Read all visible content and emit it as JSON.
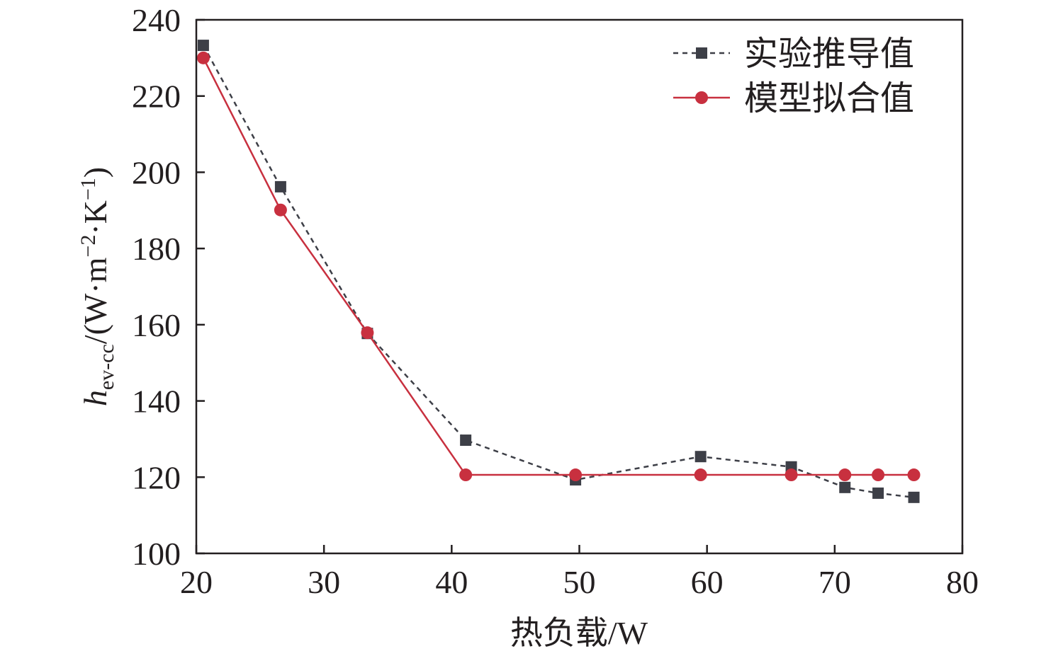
{
  "chart_data": {
    "type": "line",
    "title": "",
    "xlabel": "热负载/W",
    "ylabel": {
      "main": "h",
      "sub": "ev-cc",
      "unit_prefix": "/(W·m",
      "exp1": "−2",
      "mid": "·K",
      "exp2": "−1",
      "unit_suffix": ")"
    },
    "xlim": [
      20,
      80
    ],
    "ylim": [
      100,
      240
    ],
    "xticks": [
      20,
      30,
      40,
      50,
      60,
      70,
      80
    ],
    "yticks": [
      100,
      120,
      140,
      160,
      180,
      200,
      220,
      240
    ],
    "grid": false,
    "legend_position": "top-right",
    "series": [
      {
        "name": "实验推导值",
        "color": "#3d3f47",
        "line": "dashed",
        "marker": "square",
        "x": [
          20.55,
          26.6,
          33.4,
          41.1,
          49.7,
          59.5,
          66.6,
          70.8,
          73.4,
          76.2
        ],
        "y": [
          233.3,
          196.2,
          157.7,
          129.7,
          119.3,
          125.4,
          122.7,
          117.3,
          115.8,
          114.7
        ]
      },
      {
        "name": "模型拟合值",
        "color": "#c8303f",
        "line": "solid",
        "marker": "circle",
        "x": [
          20.55,
          26.6,
          33.4,
          41.1,
          49.7,
          59.5,
          66.6,
          70.8,
          73.4,
          76.2
        ],
        "y": [
          230.0,
          190.1,
          157.9,
          120.6,
          120.6,
          120.6,
          120.6,
          120.6,
          120.6,
          120.6
        ]
      }
    ]
  }
}
